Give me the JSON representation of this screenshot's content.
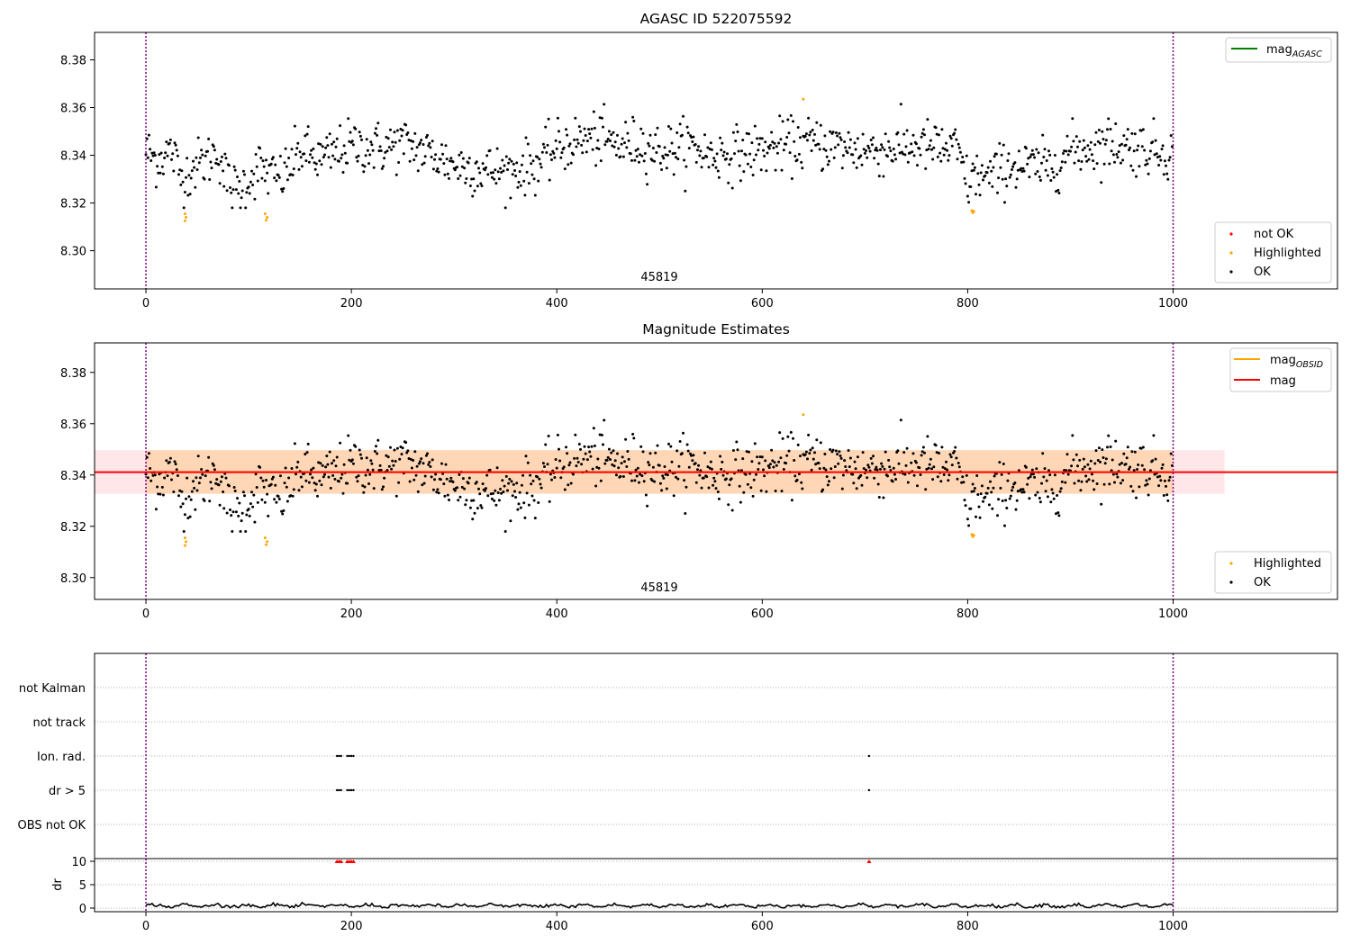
{
  "panel1": {
    "title": "AGASC ID 522075592",
    "obsid_label": "45819",
    "x_ticks": [
      "0",
      "200",
      "400",
      "600",
      "800",
      "1000"
    ],
    "y_ticks": [
      "8.30",
      "8.32",
      "8.34",
      "8.36",
      "8.38"
    ],
    "legend_line": {
      "base": "mag",
      "sub": "AGASC",
      "color": "#008000"
    },
    "legend_points": [
      {
        "label": "not OK",
        "color": "#ff0000"
      },
      {
        "label": "Highlighted",
        "color": "#ffa500"
      },
      {
        "label": "OK",
        "color": "#000000"
      }
    ]
  },
  "panel2": {
    "title": "Magnitude Estimates",
    "obsid_label": "45819",
    "x_ticks": [
      "0",
      "200",
      "400",
      "600",
      "800",
      "1000"
    ],
    "y_ticks": [
      "8.30",
      "8.32",
      "8.34",
      "8.36",
      "8.38"
    ],
    "legend_lines": [
      {
        "base": "mag",
        "sub": "OBSID",
        "color": "#ffa500"
      },
      {
        "base": "mag",
        "sub": "",
        "color": "#ff0000"
      }
    ],
    "legend_points": [
      {
        "label": "Highlighted",
        "color": "#ffa500"
      },
      {
        "label": "OK",
        "color": "#000000"
      }
    ]
  },
  "panel3": {
    "flag_labels": [
      "not Kalman",
      "not track",
      "Ion. rad.",
      "dr > 5",
      "OBS not OK"
    ],
    "dr_label": "dr",
    "dr_ticks": [
      "0",
      "5",
      "10"
    ],
    "x_ticks": [
      "0",
      "200",
      "400",
      "600",
      "800",
      "1000"
    ]
  },
  "chart_data": [
    {
      "type": "scatter",
      "title": "AGASC ID 522075592",
      "xlim": [
        -50,
        1160
      ],
      "ylim": [
        8.284,
        8.3915
      ],
      "vlines_x": [
        0,
        1000
      ],
      "mag_agasc": null,
      "series": [
        {
          "name": "OK",
          "color": "#000000",
          "profile_x": [
            0,
            10,
            25,
            35,
            45,
            60,
            70,
            80,
            90,
            100,
            110,
            120,
            130,
            140,
            150,
            170,
            200,
            230,
            250,
            270,
            300,
            330,
            350,
            360,
            380,
            400,
            420,
            440,
            460,
            480,
            500,
            530,
            550,
            580,
            600,
            620,
            650,
            700,
            750,
            790,
            800,
            810,
            820,
            840,
            860,
            880,
            900,
            940,
            1000
          ],
          "profile_mean": [
            8.342,
            8.338,
            8.342,
            8.33,
            8.335,
            8.338,
            8.342,
            8.328,
            8.325,
            8.33,
            8.335,
            8.332,
            8.33,
            8.335,
            8.342,
            8.338,
            8.344,
            8.343,
            8.345,
            8.342,
            8.336,
            8.334,
            8.333,
            8.334,
            8.336,
            8.343,
            8.346,
            8.347,
            8.344,
            8.345,
            8.342,
            8.344,
            8.34,
            8.341,
            8.342,
            8.344,
            8.345,
            8.342,
            8.344,
            8.342,
            8.328,
            8.332,
            8.33,
            8.336,
            8.335,
            8.335,
            8.342,
            8.345,
            8.341
          ],
          "spread": 0.0055,
          "n": 1000
        },
        {
          "name": "Highlighted",
          "color": "#ffa500",
          "x": [
            38,
            38,
            39,
            116,
            117,
            118,
            804,
            805,
            806,
            640
          ],
          "y": [
            8.3155,
            8.3125,
            8.314,
            8.3155,
            8.3128,
            8.314,
            8.3168,
            8.316,
            8.3165,
            8.3635
          ]
        },
        {
          "name": "not OK",
          "color": "#ff0000",
          "x": [],
          "y": []
        }
      ]
    },
    {
      "type": "scatter",
      "title": "Magnitude Estimates",
      "xlim": [
        -50,
        1160
      ],
      "ylim": [
        8.2915,
        8.3915
      ],
      "vlines_x": [
        0,
        1000
      ],
      "mag": 8.3411,
      "mag_band": [
        8.3327,
        8.3497
      ],
      "mag_band_xrange": [
        -50,
        1050
      ],
      "mag_obsid": 8.3411,
      "mag_obsid_band": [
        8.3327,
        8.3497
      ],
      "mag_obsid_xrange": [
        0,
        1000
      ]
    },
    {
      "type": "scatter",
      "xlim": [
        -50,
        1160
      ],
      "flag_rows": [
        "not Kalman",
        "not track",
        "Ion. rad.",
        "dr > 5",
        "OBS not OK"
      ],
      "flag_points": [
        {
          "row": "Ion. rad.",
          "x": [
            186,
            188,
            190,
            196,
            198,
            200,
            202,
            704
          ]
        },
        {
          "row": "dr > 5",
          "x": [
            186,
            188,
            190,
            196,
            198,
            200,
            202,
            704
          ]
        }
      ],
      "dr": {
        "ylim": [
          -1,
          11
        ],
        "clip_value": 10,
        "clipped_x": [
          186,
          188,
          190,
          196,
          198,
          200,
          202,
          704
        ],
        "typical": 0.5
      }
    }
  ]
}
